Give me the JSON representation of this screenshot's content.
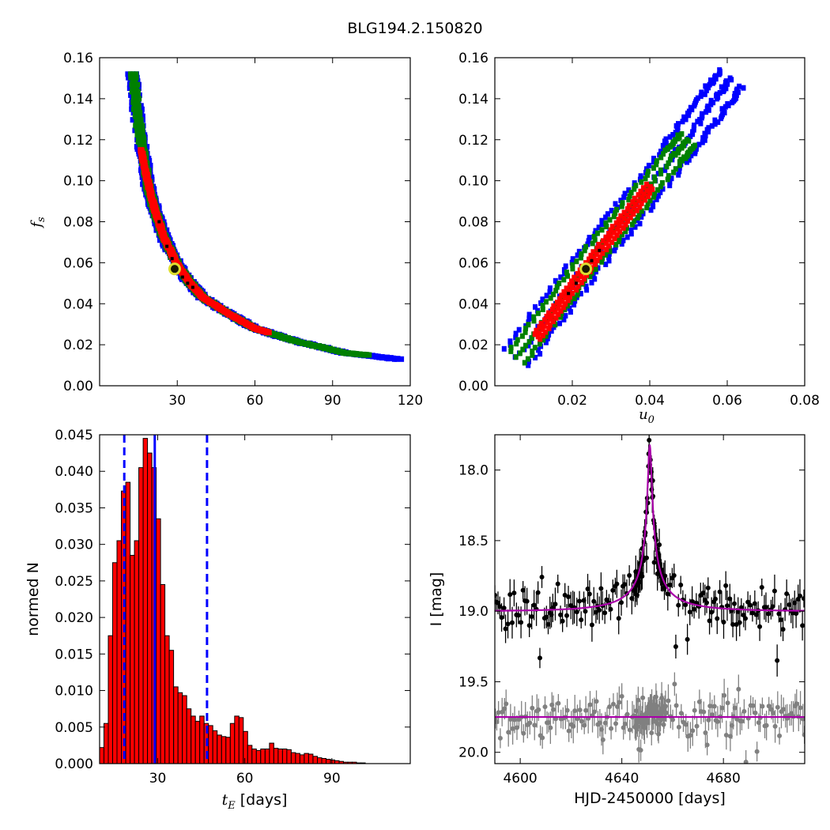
{
  "figure": {
    "title": "BLG194.2.150820"
  },
  "chart_data": [
    {
      "id": "fs_vs_tE",
      "type": "heatmap",
      "xlim": [
        0,
        120
      ],
      "ylim": [
        0.0,
        0.16
      ],
      "xticks": [
        30,
        60,
        90,
        120
      ],
      "yticks": [
        0.0,
        0.02,
        0.04,
        0.06,
        0.08,
        0.1,
        0.12,
        0.14,
        0.16
      ],
      "ytick_labels": [
        "0.00",
        "0.02",
        "0.04",
        "0.06",
        "0.08",
        "0.10",
        "0.12",
        "0.14",
        "0.16"
      ],
      "xlabel": "",
      "ylabel_base": "f",
      "ylabel_sub": "s",
      "regions": [
        {
          "color": "#0000ff",
          "halfwidth": 3.0,
          "points": [
            [
              13,
              0.152
            ],
            [
              15,
              0.128
            ],
            [
              17,
              0.112
            ],
            [
              19,
              0.096
            ],
            [
              22,
              0.083
            ],
            [
              25,
              0.072
            ],
            [
              30,
              0.059
            ],
            [
              35,
              0.05
            ],
            [
              40,
              0.043
            ],
            [
              50,
              0.035
            ],
            [
              60,
              0.028
            ],
            [
              75,
              0.022
            ],
            [
              95,
              0.016
            ],
            [
              115,
              0.013
            ]
          ]
        },
        {
          "color": "#008000",
          "halfwidth": 2.0,
          "points": [
            [
              13,
              0.152
            ],
            [
              15,
              0.128
            ],
            [
              17,
              0.112
            ],
            [
              19,
              0.096
            ],
            [
              22,
              0.083
            ],
            [
              25,
              0.072
            ],
            [
              30,
              0.059
            ],
            [
              35,
              0.05
            ],
            [
              40,
              0.043
            ],
            [
              50,
              0.035
            ],
            [
              60,
              0.028
            ],
            [
              75,
              0.022
            ],
            [
              95,
              0.016
            ],
            [
              103,
              0.015
            ]
          ]
        },
        {
          "color": "#ff0000",
          "halfwidth": 1.0,
          "points": [
            [
              16,
              0.115
            ],
            [
              18,
              0.103
            ],
            [
              20,
              0.092
            ],
            [
              22,
              0.083
            ],
            [
              25,
              0.072
            ],
            [
              30,
              0.059
            ],
            [
              35,
              0.05
            ],
            [
              40,
              0.043
            ],
            [
              50,
              0.035
            ],
            [
              60,
              0.028
            ],
            [
              65,
              0.026
            ]
          ]
        }
      ],
      "best_fit_dots": [
        [
          23,
          0.08
        ],
        [
          26,
          0.068
        ],
        [
          28,
          0.062
        ],
        [
          30,
          0.057
        ],
        [
          32,
          0.053
        ],
        [
          34,
          0.05
        ],
        [
          36,
          0.048
        ]
      ],
      "best_fit": {
        "x": 29,
        "y": 0.057
      }
    },
    {
      "id": "fs_vs_u0",
      "type": "heatmap",
      "xlim": [
        0.0,
        0.08
      ],
      "ylim": [
        0.0,
        0.16
      ],
      "xticks": [
        0.02,
        0.04,
        0.06,
        0.08
      ],
      "xtick_labels": [
        "0.02",
        "0.04",
        "0.06",
        "0.08"
      ],
      "yticks": [
        0.0,
        0.02,
        0.04,
        0.06,
        0.08,
        0.1,
        0.12,
        0.14,
        0.16
      ],
      "ytick_labels": [
        "0.00",
        "0.02",
        "0.04",
        "0.06",
        "0.08",
        "0.10",
        "0.12",
        "0.14",
        "0.16"
      ],
      "xlabel_base": "u",
      "xlabel_sub": "0",
      "regions": [
        {
          "color": "#0000ff",
          "halfwidth": 0.004,
          "points": [
            [
              0.006,
              0.014
            ],
            [
              0.016,
              0.04
            ],
            [
              0.026,
              0.065
            ],
            [
              0.036,
              0.088
            ],
            [
              0.046,
              0.112
            ],
            [
              0.052,
              0.127
            ],
            [
              0.057,
              0.14
            ],
            [
              0.061,
              0.15
            ]
          ]
        },
        {
          "color": "#008000",
          "halfwidth": 0.0028,
          "points": [
            [
              0.006,
              0.014
            ],
            [
              0.016,
              0.04
            ],
            [
              0.026,
              0.065
            ],
            [
              0.036,
              0.088
            ],
            [
              0.046,
              0.112
            ],
            [
              0.05,
              0.12
            ]
          ]
        },
        {
          "color": "#ff0000",
          "halfwidth": 0.0012,
          "points": [
            [
              0.011,
              0.024
            ],
            [
              0.02,
              0.048
            ],
            [
              0.03,
              0.073
            ],
            [
              0.04,
              0.097
            ]
          ]
        }
      ],
      "best_fit_dots": [
        [
          0.019,
          0.045
        ],
        [
          0.021,
          0.05
        ],
        [
          0.023,
          0.056
        ],
        [
          0.025,
          0.061
        ],
        [
          0.027,
          0.066
        ]
      ],
      "best_fit": {
        "x": 0.0235,
        "y": 0.057
      }
    },
    {
      "id": "tE_histogram",
      "type": "bar",
      "xlim": [
        10,
        117
      ],
      "ylim": [
        0.0,
        0.045
      ],
      "xticks": [
        30,
        60,
        90
      ],
      "yticks": [
        0.0,
        0.005,
        0.01,
        0.015,
        0.02,
        0.025,
        0.03,
        0.035,
        0.04,
        0.045
      ],
      "ytick_labels": [
        "0.000",
        "0.005",
        "0.010",
        "0.015",
        "0.020",
        "0.025",
        "0.030",
        "0.035",
        "0.040",
        "0.045"
      ],
      "bin_width": 1.5,
      "bin_start": 10,
      "values": [
        0.0022,
        0.0055,
        0.0175,
        0.0275,
        0.0305,
        0.0373,
        0.0385,
        0.0285,
        0.0305,
        0.0405,
        0.0445,
        0.0425,
        0.0405,
        0.0335,
        0.0245,
        0.0175,
        0.0155,
        0.0105,
        0.0097,
        0.0093,
        0.0075,
        0.0065,
        0.0058,
        0.0065,
        0.0055,
        0.0052,
        0.0045,
        0.0039,
        0.0037,
        0.0036,
        0.0055,
        0.0065,
        0.0063,
        0.0044,
        0.0025,
        0.002,
        0.0018,
        0.002,
        0.002,
        0.0028,
        0.0021,
        0.002,
        0.002,
        0.0019,
        0.0015,
        0.0014,
        0.0012,
        0.0014,
        0.0013,
        0.001,
        0.0008,
        0.0007,
        0.0006,
        0.0005,
        0.0004,
        0.0003,
        0.0002,
        0.0002,
        0.0002,
        0.0001,
        0.0001
      ],
      "median_line": 29,
      "interval_lines": [
        18.5,
        47
      ],
      "xlabel_base": "t",
      "xlabel_sub": "E",
      "xlabel_suffix": " [days]",
      "ylabel": "normed N",
      "colors": {
        "bar": "#ff0000",
        "edge": "#000000",
        "lines": "#0000ff"
      }
    },
    {
      "id": "light_curve",
      "type": "scatter",
      "xlim": [
        4590,
        4712
      ],
      "ylim": [
        20.08,
        17.75
      ],
      "xticks": [
        4600,
        4640,
        4680
      ],
      "yticks": [
        18.0,
        18.5,
        19.0,
        19.5,
        20.0
      ],
      "ytick_labels": [
        "18.0",
        "18.5",
        "19.0",
        "19.5",
        "20.0"
      ],
      "xlabel": "HJD-2450000 [days]",
      "ylabel": "I [mag]",
      "model": {
        "baseline": 19.0,
        "peak_time": 4651.0,
        "peak_mag": 17.82,
        "tE": 29,
        "u0": 0.0235
      },
      "residual_baseline": 19.75,
      "colors": {
        "data": "#000000",
        "residuals": "#808080",
        "model": "#aa00aa"
      }
    }
  ]
}
